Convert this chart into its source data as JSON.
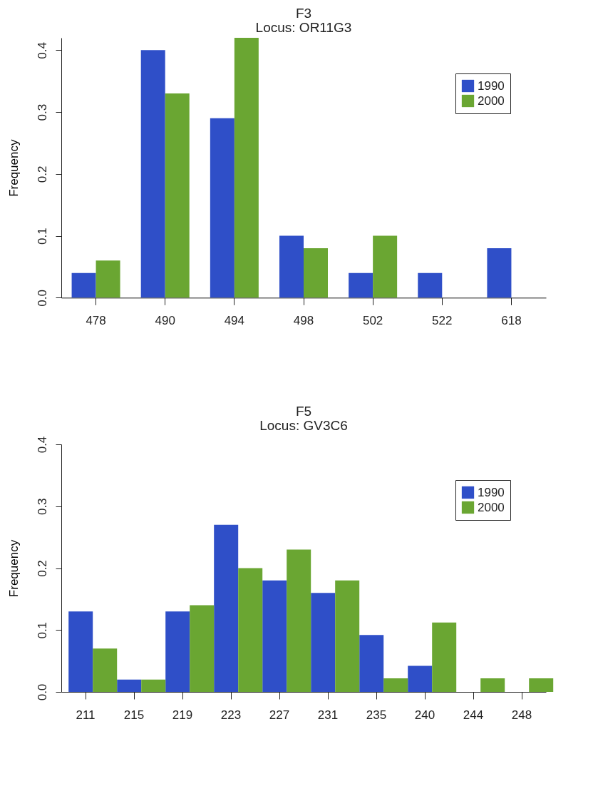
{
  "chart_data": [
    {
      "type": "bar",
      "title": "F3",
      "subtitle": "Locus: OR11G3",
      "ylabel": "Frequency",
      "categories": [
        "478",
        "490",
        "494",
        "498",
        "502",
        "522",
        "618"
      ],
      "series": [
        {
          "name": "1990",
          "color": "#2f4fc8",
          "values": [
            0.04,
            0.4,
            0.29,
            0.1,
            0.04,
            0.04,
            0.08
          ]
        },
        {
          "name": "2000",
          "color": "#6aa632",
          "values": [
            0.06,
            0.33,
            0.42,
            0.08,
            0.1,
            0,
            0
          ]
        }
      ],
      "ylim": [
        0,
        0.42
      ],
      "yticks": [
        {
          "value": 0,
          "label": "0.0"
        },
        0.1,
        0.2,
        0.3,
        0.4
      ],
      "grid": false,
      "legend": "top right"
    },
    {
      "type": "bar",
      "title": "F5",
      "subtitle": "Locus: GV3C6",
      "ylabel": "Frequency",
      "categories": [
        "211",
        "215",
        "219",
        "223",
        "227",
        "231",
        "235",
        "240",
        "244",
        "248"
      ],
      "series": [
        {
          "name": "1990",
          "color": "#2f4fc8",
          "values": [
            0.13,
            0.02,
            0.13,
            0.27,
            0.18,
            0.16,
            0.092,
            0.042,
            0,
            0
          ]
        },
        {
          "name": "2000",
          "color": "#6aa632",
          "values": [
            0.07,
            0.02,
            0.14,
            0.2,
            0.23,
            0.18,
            0.022,
            0.112,
            0.022,
            0.022
          ]
        }
      ],
      "ylim": [
        0,
        0.4
      ],
      "yticks": [
        {
          "value": 0,
          "label": "0.0"
        },
        0.1,
        0.2,
        0.3,
        0.4
      ],
      "grid": false,
      "legend": "top right"
    }
  ]
}
